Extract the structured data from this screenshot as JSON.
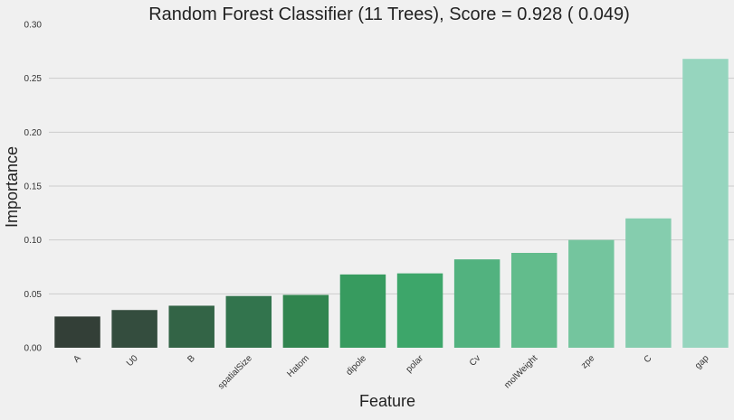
{
  "chart_data": {
    "type": "bar",
    "title": "Random Forest Classifier (11 Trees), Score = 0.928 ( 0.049)",
    "xlabel": "Feature",
    "ylabel": "Importance",
    "categories": [
      "A",
      "U0",
      "B",
      "spatialSize",
      "Hatom",
      "dipole",
      "polar",
      "Cv",
      "molWeight",
      "zpe",
      "C",
      "gap"
    ],
    "values": [
      0.029,
      0.035,
      0.039,
      0.048,
      0.049,
      0.068,
      0.069,
      0.082,
      0.088,
      0.1,
      0.12,
      0.268
    ],
    "ylim": [
      0,
      0.3
    ],
    "yticks": [
      "0.00",
      "0.05",
      "0.10",
      "0.15",
      "0.20",
      "0.25",
      "0.30"
    ],
    "grid": true,
    "colors": [
      "#333f37",
      "#344d3e",
      "#336446",
      "#32744d",
      "#31854f",
      "#379b5f",
      "#3da66a",
      "#52b27f",
      "#62bc8c",
      "#74c59e",
      "#85cdae",
      "#96d5be"
    ],
    "background": "#f0f0f0",
    "grid_color": "#cbcbcb"
  }
}
